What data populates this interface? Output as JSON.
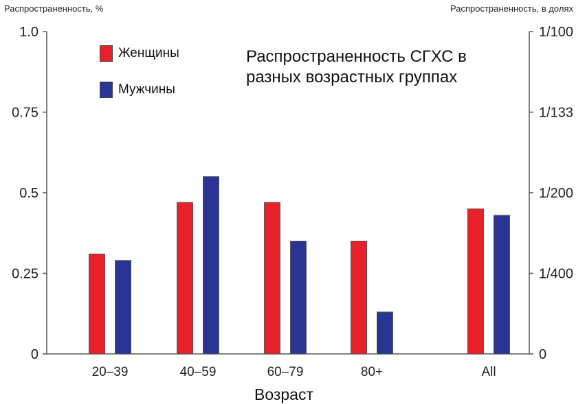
{
  "chart_data": {
    "type": "bar",
    "title": "Распространенность СГХС в разных возрастных группах",
    "ylabel_left": "Распространенность, %",
    "ylabel_right": "Распространенность, в долях",
    "xlabel": "Возраст",
    "categories": [
      "20–39",
      "40–59",
      "60–79",
      "80+",
      "All"
    ],
    "series": [
      {
        "name": "Женщины",
        "color": "#e8202a",
        "values": [
          0.31,
          0.47,
          0.47,
          0.35,
          0.45
        ]
      },
      {
        "name": "Мужчины",
        "color": "#2a3593",
        "values": [
          0.29,
          0.55,
          0.35,
          0.13,
          0.43
        ]
      }
    ],
    "ylim": [
      0,
      1.0
    ],
    "yticks_left": [
      {
        "value": 0,
        "label": "0"
      },
      {
        "value": 0.25,
        "label": "0.25"
      },
      {
        "value": 0.5,
        "label": "0.5"
      },
      {
        "value": 0.75,
        "label": "0.75"
      },
      {
        "value": 1.0,
        "label": "1.0"
      }
    ],
    "yticks_right": [
      {
        "value": 0,
        "label": "0"
      },
      {
        "value": 0.25,
        "label": "1/400"
      },
      {
        "value": 0.5,
        "label": "1/200"
      },
      {
        "value": 0.75,
        "label": "1/133"
      },
      {
        "value": 1.0,
        "label": "1/100"
      }
    ],
    "grid": false,
    "legend_position": "top-left"
  }
}
